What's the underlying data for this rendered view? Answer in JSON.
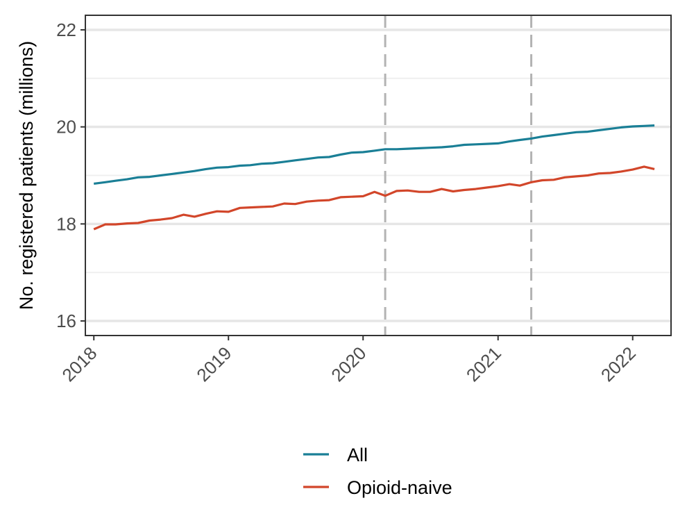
{
  "chart_data": {
    "type": "line",
    "title": "",
    "xlabel": "",
    "ylabel": "No. registered patients (millions)",
    "xlim": [
      "2017-12-09",
      "2022-04-15"
    ],
    "ylim": [
      15.7,
      22.3
    ],
    "x_ticks": [
      "2018-01-01",
      "2019-01-01",
      "2020-01-01",
      "2021-01-01",
      "2022-01-01"
    ],
    "x_tick_labels": [
      "2018",
      "2019",
      "2020",
      "2021",
      "2022"
    ],
    "y_ticks": [
      16,
      18,
      20,
      22
    ],
    "y_tick_labels": [
      "16",
      "18",
      "20",
      "22"
    ],
    "grid": true,
    "legend_position": "bottom",
    "vlines": [
      "2020-03-01",
      "2021-04-01"
    ],
    "x": [
      "2018-01-01",
      "2018-02-01",
      "2018-03-01",
      "2018-04-01",
      "2018-05-01",
      "2018-06-01",
      "2018-07-01",
      "2018-08-01",
      "2018-09-01",
      "2018-10-01",
      "2018-11-01",
      "2018-12-01",
      "2019-01-01",
      "2019-02-01",
      "2019-03-01",
      "2019-04-01",
      "2019-05-01",
      "2019-06-01",
      "2019-07-01",
      "2019-08-01",
      "2019-09-01",
      "2019-10-01",
      "2019-11-01",
      "2019-12-01",
      "2020-01-01",
      "2020-02-01",
      "2020-03-01",
      "2020-04-01",
      "2020-05-01",
      "2020-06-01",
      "2020-07-01",
      "2020-08-01",
      "2020-09-01",
      "2020-10-01",
      "2020-11-01",
      "2020-12-01",
      "2021-01-01",
      "2021-02-01",
      "2021-03-01",
      "2021-04-01",
      "2021-05-01",
      "2021-06-01",
      "2021-07-01",
      "2021-08-01",
      "2021-09-01",
      "2021-10-01",
      "2021-11-01",
      "2021-12-01",
      "2022-01-01",
      "2022-02-01",
      "2022-03-01"
    ],
    "series": [
      {
        "name": "All",
        "color": "#1a7f96",
        "values": [
          18.83,
          18.86,
          18.89,
          18.92,
          18.96,
          18.97,
          19.0,
          19.03,
          19.06,
          19.09,
          19.13,
          19.16,
          19.17,
          19.2,
          19.21,
          19.24,
          19.25,
          19.28,
          19.31,
          19.34,
          19.37,
          19.38,
          19.43,
          19.47,
          19.48,
          19.51,
          19.54,
          19.54,
          19.55,
          19.56,
          19.57,
          19.58,
          19.6,
          19.63,
          19.64,
          19.65,
          19.66,
          19.7,
          19.73,
          19.76,
          19.8,
          19.83,
          19.86,
          19.89,
          19.9,
          19.93,
          19.96,
          19.99,
          20.01,
          20.02,
          20.03
        ]
      },
      {
        "name": "Opioid-naive",
        "color": "#d2462a",
        "values": [
          17.89,
          17.99,
          17.99,
          18.01,
          18.02,
          18.07,
          18.09,
          18.12,
          18.19,
          18.15,
          18.21,
          18.26,
          18.25,
          18.33,
          18.34,
          18.35,
          18.36,
          18.42,
          18.41,
          18.46,
          18.48,
          18.49,
          18.55,
          18.56,
          18.57,
          18.66,
          18.58,
          18.68,
          18.69,
          18.66,
          18.66,
          18.72,
          18.67,
          18.7,
          18.72,
          18.75,
          18.78,
          18.82,
          18.79,
          18.86,
          18.9,
          18.91,
          18.96,
          18.98,
          19.0,
          19.04,
          19.05,
          19.08,
          19.12,
          19.18,
          19.13
        ]
      }
    ]
  }
}
